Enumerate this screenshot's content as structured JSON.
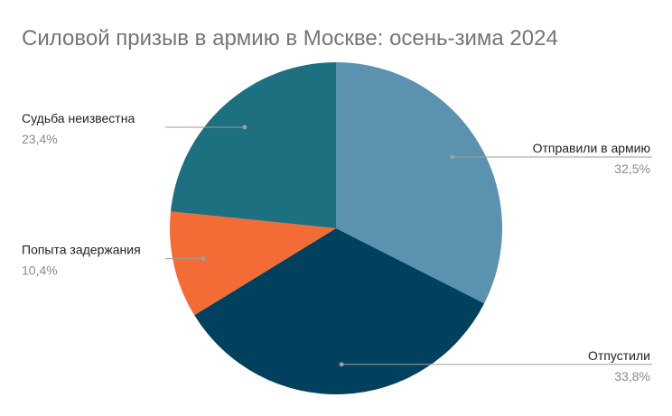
{
  "chart_data": {
    "type": "pie",
    "title": "Силовой призыв в армию в Москве: осень-зима 2024",
    "slices": [
      {
        "label": "Отправили в армию",
        "value": 32.5,
        "value_text": "32,5%",
        "color": "#5a92b0",
        "side": "right"
      },
      {
        "label": "Отпустили",
        "value": 33.8,
        "value_text": "33,8%",
        "color": "#01415d",
        "side": "right"
      },
      {
        "label": "Попыта задержания",
        "value": 10.4,
        "value_text": "10,4%",
        "color": "#f36b35",
        "side": "left"
      },
      {
        "label": "Судьба неизвестна",
        "value": 23.4,
        "value_text": "23,4%",
        "color": "#1c7080",
        "side": "left"
      }
    ],
    "start_angle": "12 o'clock",
    "direction": "clockwise",
    "legend": "none"
  }
}
